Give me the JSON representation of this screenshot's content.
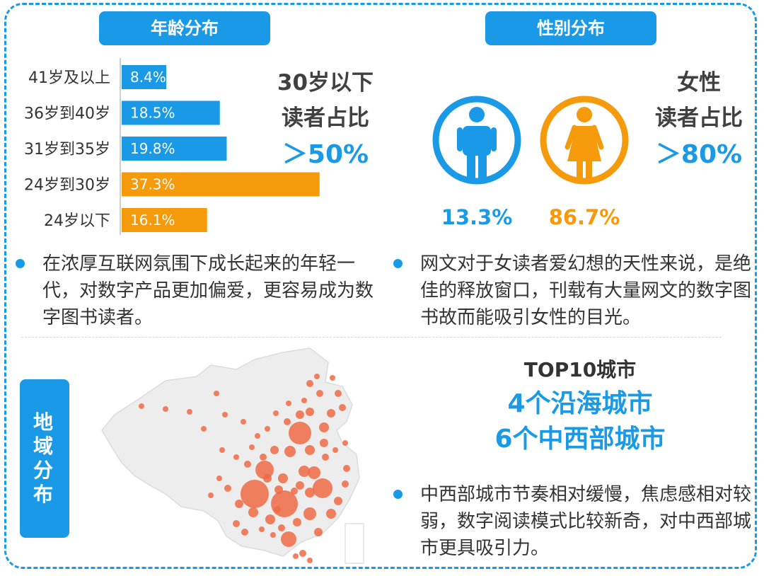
{
  "age_section": {
    "title": "年龄分布",
    "callout_line1": "30岁以下",
    "callout_line2": "读者占比",
    "callout_value": "＞50%",
    "note": "在浓厚互联网氛围下成长起来的年轻一代，对数字产品更加偏爱，更容易成为数字图书读者。"
  },
  "gender_section": {
    "title": "性别分布",
    "male_pct": "13.3%",
    "female_pct": "86.7%",
    "callout_line1": "女性",
    "callout_line2": "读者占比",
    "callout_value": "＞80%",
    "note": "网文对于女读者爱幻想的天性来说，是绝佳的释放窗口，刊载有大量网文的数字图书故而能吸引女性的目光。",
    "male_color": "#1a9ae6",
    "female_color": "#f59a0b"
  },
  "region_section": {
    "title_chars": [
      "地",
      "域",
      "分",
      "布"
    ],
    "top10_line1": "TOP10城市",
    "top10_line2": "4个沿海城市",
    "top10_line3": "6个中西部城市",
    "note": "中西部城市节奏相对缓慢，焦虑感相对较弱，数字阅读模式比较新奇，对中西部城市更具吸引力。"
  },
  "chart_data": {
    "type": "bar",
    "orientation": "horizontal",
    "categories": [
      "41岁及以上",
      "36岁到40岁",
      "31岁到35岁",
      "24岁到30岁",
      "24岁以下"
    ],
    "values": [
      8.4,
      18.5,
      19.8,
      37.3,
      16.1
    ],
    "value_labels": [
      "8.4%",
      "18.5%",
      "19.8%",
      "37.3%",
      "16.1%"
    ],
    "colors": [
      "#1a9ae6",
      "#1a9ae6",
      "#1a9ae6",
      "#f59a0b",
      "#f59a0b"
    ],
    "xlim": [
      0,
      40
    ],
    "grid": false
  }
}
